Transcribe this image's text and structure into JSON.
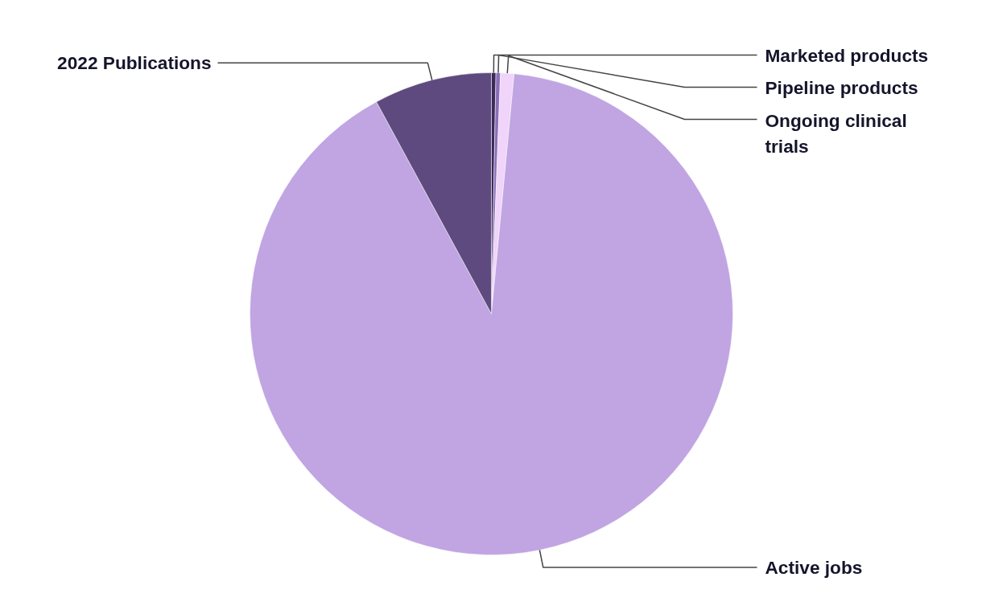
{
  "chart_data": {
    "type": "pie",
    "categories": [
      "Marketed products",
      "Pipeline products",
      "Ongoing clinical trials",
      "Active jobs",
      "2022 Publications"
    ],
    "values": [
      0.3,
      0.3,
      0.9,
      90.6,
      7.9
    ],
    "colors": [
      "#3b2a5a",
      "#8a6fb8",
      "#f0d4f9",
      "#c0a5e2",
      "#5e4a7f"
    ],
    "legend": false
  }
}
